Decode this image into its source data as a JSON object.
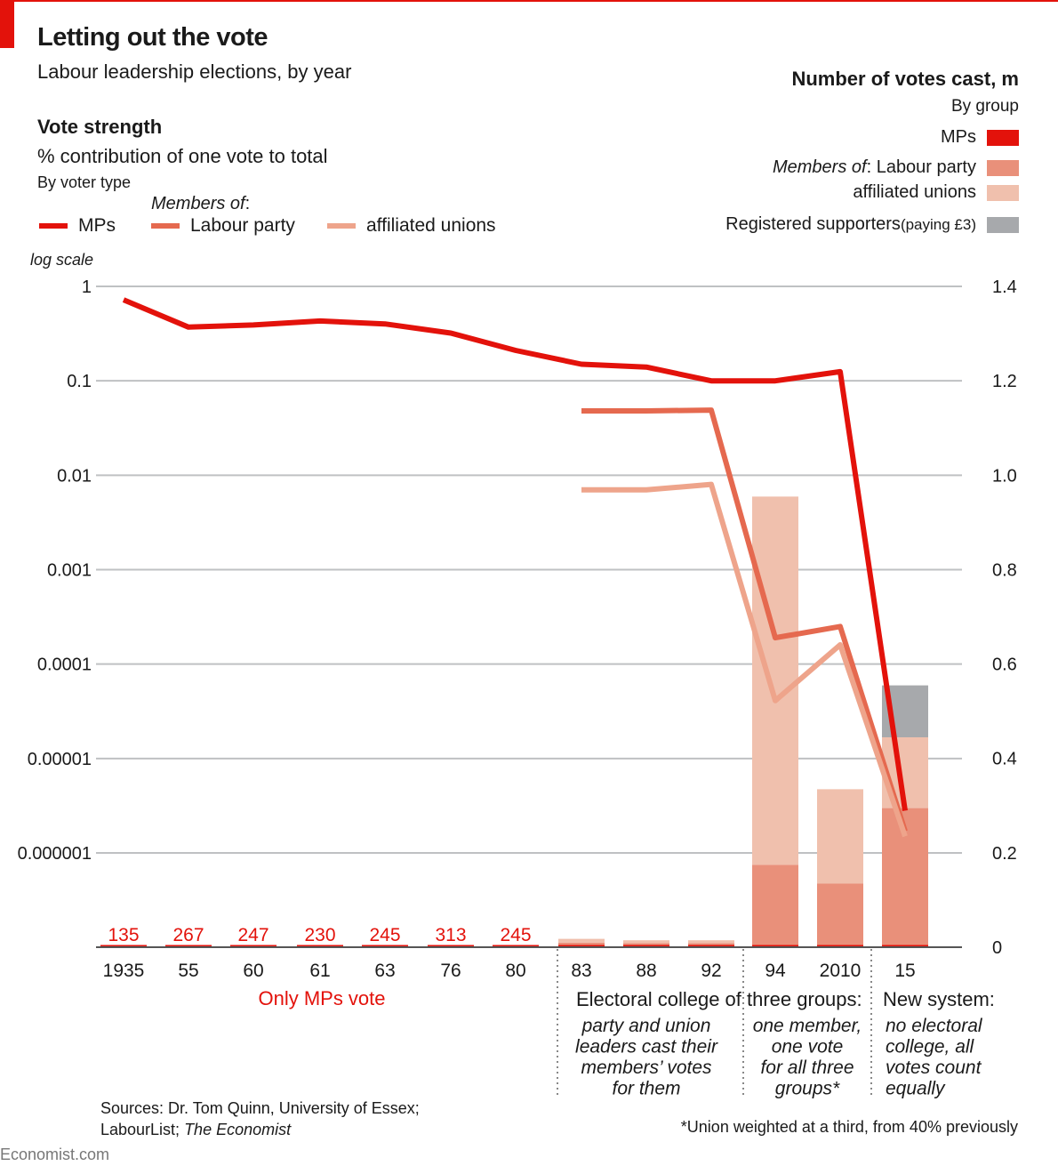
{
  "header": {
    "title": "Letting out the vote",
    "subtitle": "Labour leadership elections, by year"
  },
  "left_legend": {
    "heading": "Vote strength",
    "subheading": "% contribution of one vote to total",
    "byline": "By voter type",
    "members_of": "Members of",
    "members_colon": ":",
    "items": [
      {
        "label": "MPs",
        "color": "#e3120b"
      },
      {
        "label": "Labour party",
        "color": "#e5694f"
      },
      {
        "label": "affiliated unions",
        "color": "#eea48b"
      }
    ],
    "scale_note": "log scale"
  },
  "right_legend": {
    "heading": "Number of votes cast, m",
    "byline": "By group",
    "items": [
      {
        "label": "MPs",
        "color": "#e3120b"
      },
      {
        "prefix": "Members of",
        "label": ": Labour party",
        "color": "#e9907a"
      },
      {
        "label": "affiliated unions",
        "color": "#f0c0ad"
      },
      {
        "label": "Registered supporters",
        "small": " (paying £3)",
        "color": "#a7a9ac"
      }
    ]
  },
  "chart_data": {
    "type": "line+stacked-bar",
    "title": "Letting out the vote",
    "subtitle": "Labour leadership elections, by year",
    "categories": [
      "1935",
      "55",
      "60",
      "61",
      "63",
      "76",
      "80",
      "83",
      "88",
      "92",
      "94",
      "2010",
      "15"
    ],
    "left_axis": {
      "label": "% contribution of one vote to total",
      "scale": "log",
      "range": [
        1e-06,
        1
      ],
      "ticks": [
        1,
        0.1,
        0.01,
        0.001,
        0.0001,
        1e-05,
        1e-06
      ],
      "tick_labels": [
        "1",
        "0.1",
        "0.01",
        "0.001",
        "0.0001",
        "0.00001",
        "0.000001"
      ]
    },
    "right_axis": {
      "label": "Number of votes cast, m",
      "scale": "linear",
      "range": [
        0,
        1.4
      ],
      "ticks": [
        0,
        0.2,
        0.4,
        0.6,
        0.8,
        1.0,
        1.2,
        1.4
      ],
      "tick_labels": [
        "0",
        "0.2",
        "0.4",
        "0.6",
        "0.8",
        "1.0",
        "1.2",
        "1.4"
      ]
    },
    "grid": true,
    "line_series": [
      {
        "name": "MPs",
        "color": "#e3120b",
        "values": [
          0.72,
          0.37,
          0.39,
          0.43,
          0.4,
          0.32,
          0.21,
          0.15,
          0.14,
          0.1,
          0.1,
          0.125,
          2.8e-06
        ]
      },
      {
        "name": "Labour party members",
        "color": "#e5694f",
        "values": [
          null,
          null,
          null,
          null,
          null,
          null,
          null,
          0.048,
          0.048,
          0.049,
          0.00019,
          0.00025,
          1.7e-06
        ]
      },
      {
        "name": "Affiliated union members",
        "color": "#eea48b",
        "values": [
          null,
          null,
          null,
          null,
          null,
          null,
          null,
          0.007,
          0.007,
          0.008,
          4.1e-05,
          0.00016,
          1.5e-06
        ]
      }
    ],
    "bar_series": [
      {
        "name": "MPs",
        "color": "#e3120b",
        "values": [
          0.000135,
          0.000267,
          0.000247,
          0.00023,
          0.000245,
          0.000313,
          0.000245,
          0.0003,
          0.0003,
          0.0003,
          0.0003,
          0.0003,
          0.0003
        ]
      },
      {
        "name": "Labour party members",
        "color": "#e9907a",
        "values": [
          0,
          0,
          0,
          0,
          0,
          0,
          0,
          0.005,
          0.004,
          0.004,
          0.17,
          0.13,
          0.29
        ]
      },
      {
        "name": "Affiliated union members",
        "color": "#f0c0ad",
        "values": [
          0,
          0,
          0,
          0,
          0,
          0,
          0,
          0.008,
          0.006,
          0.006,
          0.78,
          0.2,
          0.15
        ]
      },
      {
        "name": "Registered supporters (paying £3)",
        "color": "#a7a9ac",
        "values": [
          0,
          0,
          0,
          0,
          0,
          0,
          0,
          0,
          0,
          0,
          0,
          0,
          0.11
        ]
      }
    ],
    "mp_vote_labels": [
      "135",
      "267",
      "247",
      "230",
      "245",
      "313",
      "245"
    ],
    "periods": [
      {
        "heading": "Only MPs vote",
        "color": "#e3120b",
        "from": "1935",
        "to": "80"
      },
      {
        "heading": "Electoral college of three groups:",
        "from": "83",
        "to": "2010",
        "sub": [
          {
            "lines": [
              "party and union",
              "leaders cast their",
              "members’ votes",
              "for them"
            ],
            "from": "83",
            "to": "92"
          },
          {
            "lines": [
              "one member,",
              "one vote",
              "for all three",
              "groups*"
            ],
            "from": "94",
            "to": "2010"
          }
        ]
      },
      {
        "heading": "New system:",
        "from": "15",
        "to": "15",
        "lines": [
          "no electoral",
          "college, all",
          "votes count",
          "equally"
        ]
      }
    ]
  },
  "footer": {
    "sources_prefix": "Sources: Dr. Tom Quinn, University of Essex; LabourList; ",
    "sources_italic": "The Economist",
    "footnote": "*Union weighted at a third, from 40% previously",
    "brand": "Economist.com"
  }
}
